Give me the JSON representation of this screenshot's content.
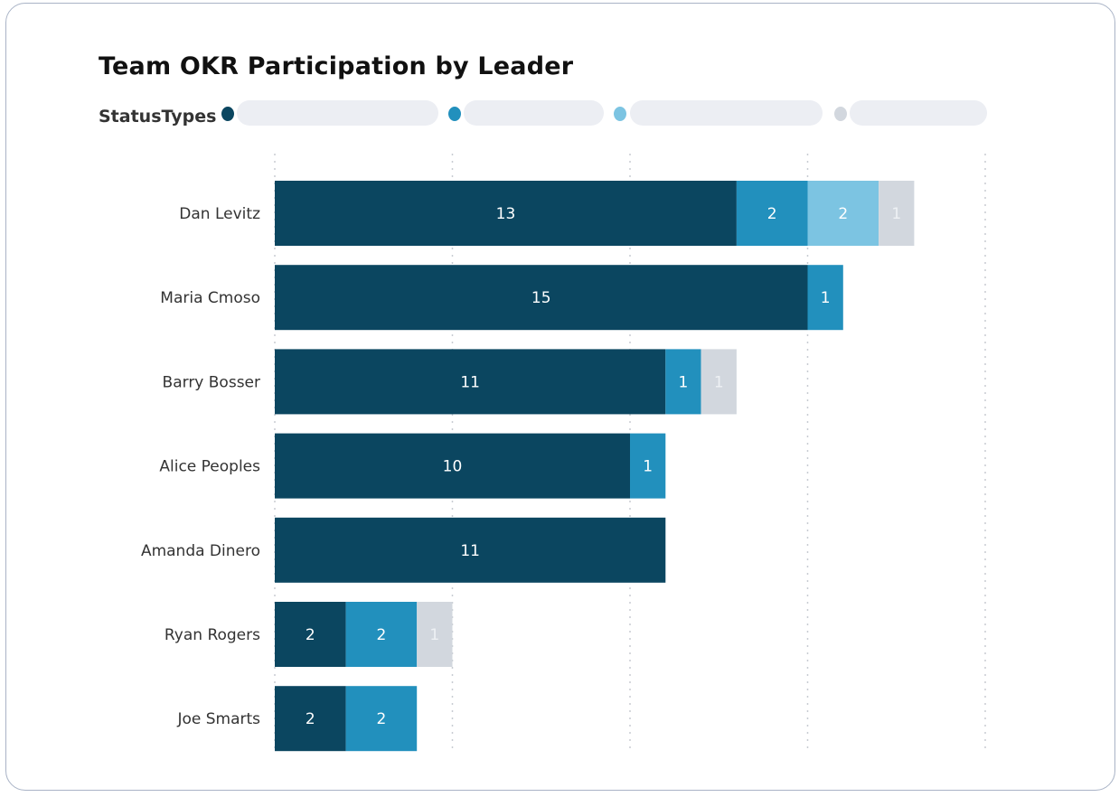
{
  "chart_data": {
    "type": "bar",
    "orientation": "horizontal",
    "stacked": true,
    "title": "Team OKR Participation by Leader",
    "legend": {
      "title": "StatusTypes",
      "placement": "top-left"
    },
    "categories": [
      "Dan Levitz",
      "Maria Cmoso",
      "Barry Bosser",
      "Alice Peoples",
      "Amanda Dinero",
      "Ryan Rogers",
      "Joe Smarts"
    ],
    "series": [
      {
        "color": "#0b4660",
        "values": [
          13,
          15,
          11,
          10,
          11,
          2,
          2
        ]
      },
      {
        "color": "#2290bd",
        "values": [
          2,
          1,
          1,
          1,
          0,
          2,
          2
        ]
      },
      {
        "color": "#7cc4e2",
        "values": [
          2,
          0,
          0,
          0,
          0,
          0,
          0
        ]
      },
      {
        "color": "#d2d7de",
        "values": [
          1,
          0,
          1,
          0,
          0,
          1,
          0
        ]
      }
    ],
    "xlim": [
      0,
      20
    ],
    "x_gridlines": [
      0,
      5,
      10,
      15,
      20
    ],
    "grid": "vertical dotted",
    "data_labels": true
  }
}
